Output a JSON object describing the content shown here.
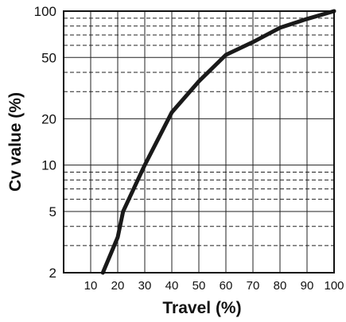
{
  "chart_data": {
    "type": "line",
    "title": "",
    "xlabel": "Travel (%)",
    "ylabel": "Cv value (%)",
    "xlim": [
      0,
      100
    ],
    "ylim": [
      2,
      100
    ],
    "y_scale": "log",
    "x_ticks": [
      10,
      20,
      30,
      40,
      50,
      60,
      70,
      80,
      90,
      100
    ],
    "x_tick_labels": [
      "10",
      "20",
      "30",
      "40",
      "50",
      "60",
      "70",
      "80",
      "90",
      "100"
    ],
    "y_ticks": [
      2,
      5,
      10,
      20,
      50,
      100
    ],
    "y_tick_labels": [
      "2",
      "5",
      "10",
      "20",
      "50",
      "100"
    ],
    "y_minor_gridlines": [
      3,
      4,
      6,
      7,
      8,
      9,
      30,
      40,
      60,
      70,
      80,
      90
    ],
    "grid": true,
    "legend": "none",
    "series": [
      {
        "x": [
          14.5,
          20,
          22,
          30,
          40,
          50,
          60,
          70,
          80,
          90,
          100
        ],
        "y": [
          2,
          3.4,
          5,
          10,
          22,
          35,
          52,
          63,
          78,
          89,
          100
        ]
      }
    ],
    "line_color": "#1a1a1a"
  }
}
